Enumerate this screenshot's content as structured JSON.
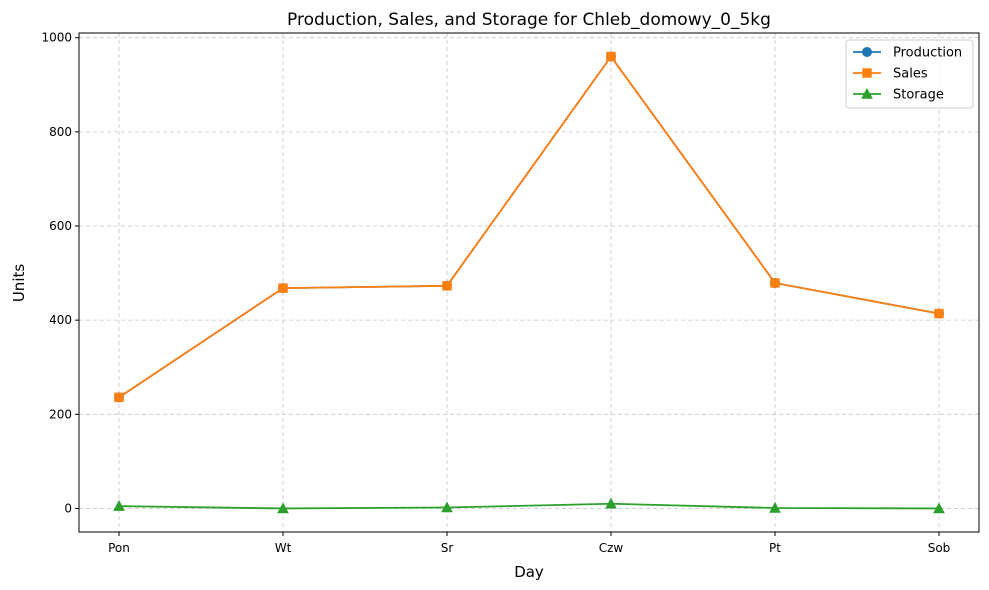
{
  "chart_data": {
    "type": "line",
    "title": "Production, Sales, and Storage for Chleb_domowy_0_5kg",
    "xlabel": "Day",
    "ylabel": "Units",
    "categories": [
      "Pon",
      "Wt",
      "Sr",
      "Czw",
      "Pt",
      "Sob"
    ],
    "ylim": [
      -50,
      1010
    ],
    "yticks": [
      0,
      200,
      400,
      600,
      800,
      1000
    ],
    "grid": true,
    "legend_position": "top-right",
    "series": [
      {
        "name": "Production",
        "marker": "circle",
        "color": "#1f77b4",
        "values": [
          236,
          468,
          473,
          960,
          479,
          414
        ]
      },
      {
        "name": "Sales",
        "marker": "square",
        "color": "#ff7f0e",
        "values": [
          236,
          468,
          473,
          960,
          479,
          414
        ]
      },
      {
        "name": "Storage",
        "marker": "triangle",
        "color": "#2ca02c",
        "values": [
          5,
          0,
          2,
          10,
          1,
          0
        ]
      }
    ]
  }
}
